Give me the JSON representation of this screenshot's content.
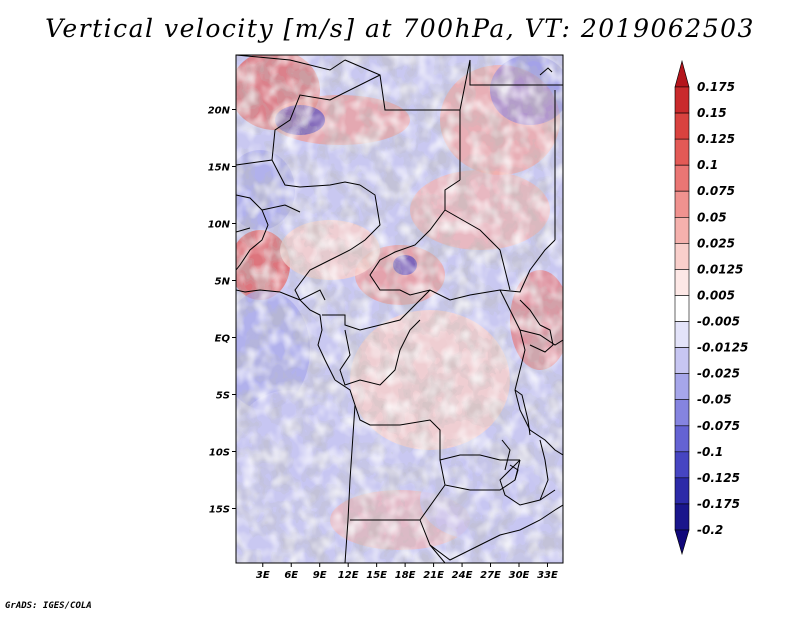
{
  "title": "Vertical velocity [m/s] at 700hPa, VT: 2019062503",
  "footer": "GrADS: IGES/COLA",
  "map": {
    "lon_range": [
      0,
      35
    ],
    "lat_range": [
      -20,
      25
    ],
    "lat_ticks": [
      {
        "value": 20,
        "label": "20N"
      },
      {
        "value": 15,
        "label": "15N"
      },
      {
        "value": 10,
        "label": "10N"
      },
      {
        "value": 5,
        "label": "5N"
      },
      {
        "value": 0,
        "label": "EQ"
      },
      {
        "value": -5,
        "label": "5S"
      },
      {
        "value": -10,
        "label": "10S"
      },
      {
        "value": -15,
        "label": "15S"
      }
    ],
    "lon_ticks": [
      {
        "value": 3,
        "label": "3E"
      },
      {
        "value": 6,
        "label": "6E"
      },
      {
        "value": 9,
        "label": "9E"
      },
      {
        "value": 12,
        "label": "12E"
      },
      {
        "value": 15,
        "label": "15E"
      },
      {
        "value": 18,
        "label": "18E"
      },
      {
        "value": 21,
        "label": "21E"
      },
      {
        "value": 24,
        "label": "24E"
      },
      {
        "value": 27,
        "label": "27E"
      },
      {
        "value": 30,
        "label": "30E"
      },
      {
        "value": 33,
        "label": "33E"
      }
    ]
  },
  "colorbar": {
    "levels": [
      "0.175",
      "0.15",
      "0.125",
      "0.1",
      "0.075",
      "0.05",
      "0.025",
      "0.0125",
      "0.005",
      "-0.005",
      "-0.0125",
      "-0.025",
      "-0.05",
      "-0.075",
      "-0.1",
      "-0.125",
      "-0.175",
      "-0.2"
    ],
    "colors": [
      "#b4151c",
      "#c92a2c",
      "#d9423f",
      "#e35a56",
      "#ea7674",
      "#f0928f",
      "#f5b1ad",
      "#f9cfcb",
      "#fde8e6",
      "#ffffff",
      "#e3e3f9",
      "#c7c6f2",
      "#a6a6ea",
      "#8584e0",
      "#6463d3",
      "#4645c2",
      "#2c2aa8",
      "#1a168c",
      "#11087a"
    ]
  }
}
